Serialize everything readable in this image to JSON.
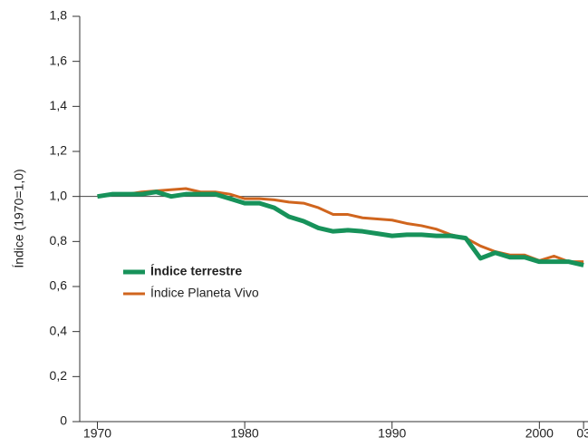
{
  "chart_data": {
    "type": "line",
    "y_label": "Índice (1970=1,0)",
    "x": [
      1970,
      1971,
      1972,
      1973,
      1974,
      1975,
      1976,
      1977,
      1978,
      1979,
      1980,
      1981,
      1982,
      1983,
      1984,
      1985,
      1986,
      1987,
      1988,
      1989,
      1990,
      1991,
      1992,
      1993,
      1994,
      1995,
      1996,
      1997,
      1998,
      1999,
      2000,
      2001,
      2002,
      2003
    ],
    "series": [
      {
        "name": "Índice terrestre",
        "color": "#17925a",
        "width": 5,
        "values": [
          1.0,
          1.01,
          1.01,
          1.01,
          1.02,
          1.0,
          1.01,
          1.01,
          1.01,
          0.99,
          0.97,
          0.97,
          0.95,
          0.91,
          0.89,
          0.86,
          0.845,
          0.85,
          0.845,
          0.835,
          0.825,
          0.83,
          0.83,
          0.825,
          0.825,
          0.815,
          0.725,
          0.75,
          0.73,
          0.73,
          0.71,
          0.71,
          0.71,
          0.695
        ]
      },
      {
        "name": "Índice Planeta Vivo",
        "color": "#d0651e",
        "width": 3,
        "values": [
          1.0,
          1.01,
          1.01,
          1.02,
          1.025,
          1.03,
          1.035,
          1.02,
          1.02,
          1.01,
          0.99,
          0.99,
          0.985,
          0.975,
          0.97,
          0.95,
          0.92,
          0.92,
          0.905,
          0.9,
          0.895,
          0.88,
          0.87,
          0.855,
          0.83,
          0.815,
          0.78,
          0.755,
          0.74,
          0.74,
          0.715,
          0.735,
          0.71,
          0.71
        ]
      }
    ],
    "xlim": [
      1968.8,
      2003.3
    ],
    "xticks": [
      1970,
      1980,
      1990,
      2000,
      {
        "value": 2003,
        "label": "03"
      }
    ],
    "ylim": [
      0,
      1.8
    ],
    "yticks": [
      {
        "value": 0,
        "label": "0"
      },
      {
        "value": 0.2,
        "label": "0,2"
      },
      {
        "value": 0.4,
        "label": "0,4"
      },
      {
        "value": 0.6,
        "label": "0,6"
      },
      {
        "value": 0.8,
        "label": "0,8"
      },
      {
        "value": 1.0,
        "label": "1,0"
      },
      {
        "value": 1.2,
        "label": "1,2"
      },
      {
        "value": 1.4,
        "label": "1,4"
      },
      {
        "value": 1.6,
        "label": "1,6"
      },
      {
        "value": 1.8,
        "label": "1,8"
      }
    ],
    "reference_line": 1.0
  }
}
